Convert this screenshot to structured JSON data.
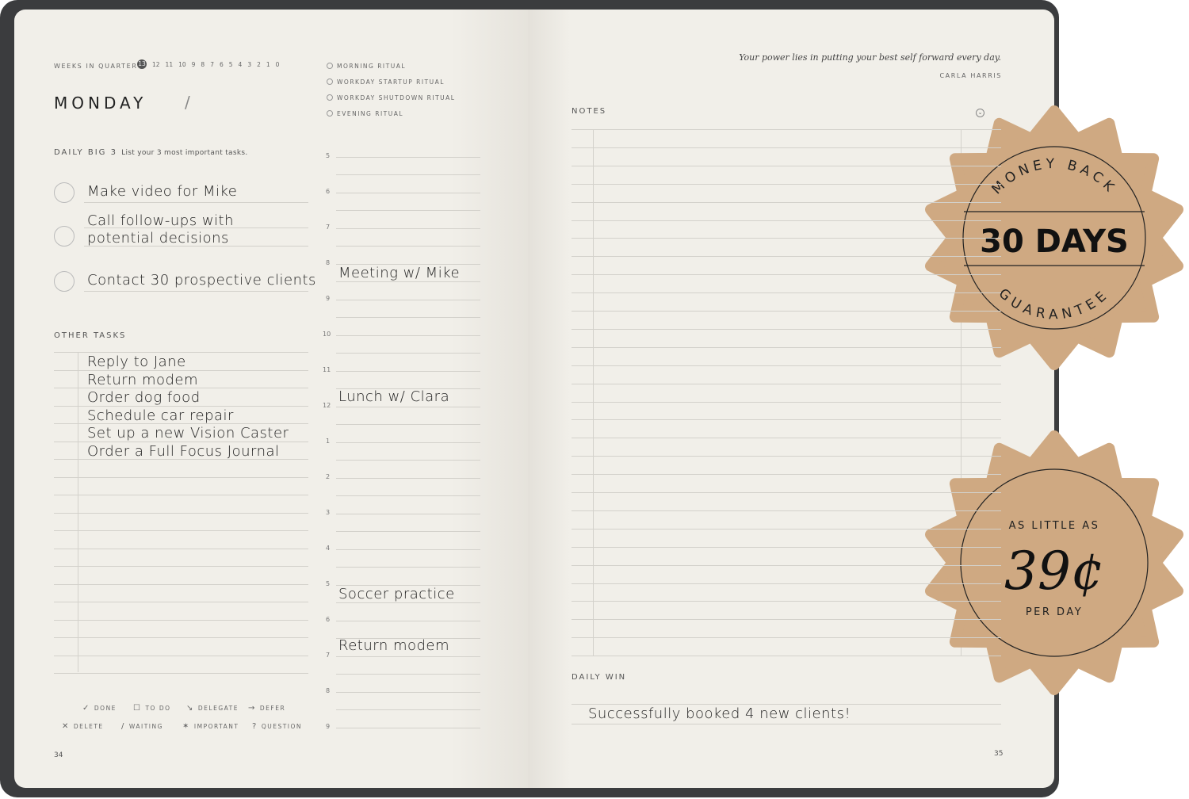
{
  "left_page": {
    "weeks_label": "WEEKS IN QUARTER",
    "weeks": [
      "13",
      "12",
      "11",
      "10",
      "9",
      "8",
      "7",
      "6",
      "5",
      "4",
      "3",
      "2",
      "1",
      "0"
    ],
    "day": "MONDAY",
    "date_sep": "/",
    "rituals": [
      "MORNING RITUAL",
      "WORKDAY STARTUP RITUAL",
      "WORKDAY SHUTDOWN RITUAL",
      "EVENING RITUAL"
    ],
    "big3_label": "DAILY BIG 3",
    "big3_hint": "List your 3 most important tasks.",
    "big3": [
      "Make video for Mike",
      "Call follow-ups with\npotential decisions",
      "Contact 30 prospective clients"
    ],
    "other_label": "OTHER TASKS",
    "other_tasks": [
      "Reply to Jane",
      "Return modem",
      "Order dog food",
      "Schedule car repair",
      "Set up a new Vision Caster",
      "Order a Full Focus Journal"
    ],
    "hours": [
      "5",
      "6",
      "7",
      "8",
      "9",
      "10",
      "11",
      "12",
      "1",
      "2",
      "3",
      "4",
      "5",
      "6",
      "7",
      "8",
      "9"
    ],
    "events": [
      {
        "hour": "8",
        "text": "Meeting w/ Mike"
      },
      {
        "hour": "12",
        "text": "Lunch w/ Clara"
      },
      {
        "hour": "5",
        "text": "Soccer practice"
      },
      {
        "hour": "7",
        "text": "Return modem"
      }
    ],
    "legend": [
      [
        "✓",
        "DONE"
      ],
      [
        "☐",
        "TO DO"
      ],
      [
        "↘",
        "DELEGATE"
      ],
      [
        "→",
        "DEFER"
      ],
      [
        "✕",
        "DELETE"
      ],
      [
        "/",
        "WAITING"
      ],
      [
        "✶",
        "IMPORTANT"
      ],
      [
        "?",
        "QUESTION"
      ]
    ],
    "page_number": "34"
  },
  "right_page": {
    "quote": "Your power lies in putting your best self forward every day.",
    "author": "CARLA HARRIS",
    "notes_label": "NOTES",
    "win_label": "DAILY WIN",
    "win": "Successfully booked 4 new clients!",
    "page_number": "35"
  },
  "badges": {
    "top": {
      "arc_top": "MONEY BACK",
      "main": "30 DAYS",
      "arc_bottom": "GUARANTEE"
    },
    "bottom": {
      "top": "AS LITTLE AS",
      "price": "39¢",
      "bottom": "PER DAY"
    },
    "color": "#cfa982"
  }
}
